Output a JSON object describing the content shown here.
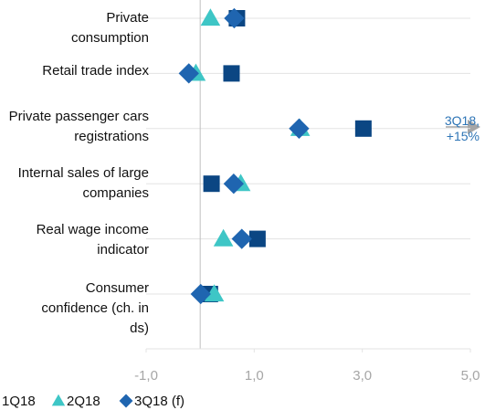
{
  "chart_data": {
    "type": "dot",
    "categories": [
      "Private consumption",
      "Retail trade index",
      "Private passenger cars registrations",
      "Internal sales of large companies",
      "Real wage income indicator",
      "Consumer confidence (ch. in ds)"
    ],
    "series": [
      {
        "name": "1Q18",
        "color": "#0b4683",
        "marker": "square",
        "values": [
          0.68,
          0.58,
          3.02,
          0.21,
          1.06,
          0.18
        ]
      },
      {
        "name": "2Q18",
        "color": "#3ec6c6",
        "marker": "triangle",
        "values": [
          0.19,
          -0.08,
          1.85,
          0.75,
          0.43,
          0.26
        ]
      },
      {
        "name": "3Q18 (f)",
        "color": "#1f65b0",
        "marker": "diamond",
        "values": [
          0.63,
          -0.21,
          1.83,
          0.62,
          0.77,
          0.01
        ]
      }
    ],
    "xlim": [
      -1,
      5
    ],
    "xticks": [
      {
        "value": -1,
        "label": "-1,0"
      },
      {
        "value": 1,
        "label": "1,0"
      },
      {
        "value": 3,
        "label": "3,0"
      },
      {
        "value": 5,
        "label": "5,0"
      }
    ],
    "annotation": "3Q18, +15%",
    "grid": true
  }
}
